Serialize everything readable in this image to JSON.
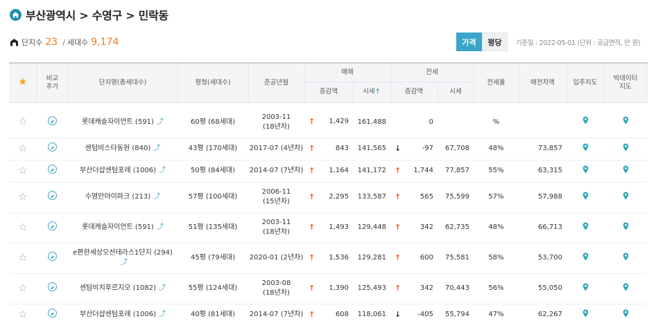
{
  "breadcrumb": {
    "text": "부산광역시 > 수영구 > 민락동"
  },
  "stats": {
    "complex_label": "단지수",
    "complex_count": "23",
    "sep": "/",
    "household_label": "세대수",
    "household_count": "9,174"
  },
  "toggles": {
    "price": "가격",
    "per_pyeong": "평당"
  },
  "basis": "기준일 : 2022-05-01 (단위 : 공급면적, 만 원)",
  "headers": {
    "compare": "비교\n추가",
    "name": "단지명(총세대수)",
    "area": "평형(세대수)",
    "built": "준공년월",
    "sale": "매매",
    "jeonse": "전세",
    "change": "증감액",
    "price": "시세",
    "ratio": "전세율",
    "gap": "매전차액",
    "map": "입주지도",
    "bigdata": "빅데이터\n지도"
  },
  "colors": {
    "accent": "#3aa5c8",
    "up": "#f05a28",
    "orange": "#f07a1e"
  },
  "rows": [
    {
      "name": "롯데캐슬자이언트 (591)",
      "area": "60평 (68세대)",
      "built": "2003-11",
      "age": "(18년차)",
      "sale_dir": "up",
      "sale_change": "1,429",
      "sale_price": "161,488",
      "j_dir": "",
      "j_change": "0",
      "j_price": "",
      "ratio": "%",
      "gap": "",
      "tall": true
    },
    {
      "name": "센텀비스타동원 (840)",
      "area": "43평 (170세대)",
      "built": "2017-07 (4년차)",
      "age": "",
      "sale_dir": "up",
      "sale_change": "843",
      "sale_price": "141,565",
      "j_dir": "down",
      "j_change": "-97",
      "j_price": "67,708",
      "ratio": "48%",
      "gap": "73,857",
      "tall": false
    },
    {
      "name": "부산더샵센텀포레 (1006)",
      "area": "50평 (84세대)",
      "built": "2014-07 (7년차)",
      "age": "",
      "sale_dir": "up",
      "sale_change": "1,164",
      "sale_price": "141,172",
      "j_dir": "up",
      "j_change": "1,744",
      "j_price": "77,857",
      "ratio": "55%",
      "gap": "63,315",
      "tall": false
    },
    {
      "name": "수영만아이파크 (213)",
      "area": "57평 (100세대)",
      "built": "2006-11",
      "age": "(15년차)",
      "sale_dir": "up",
      "sale_change": "2,295",
      "sale_price": "133,587",
      "j_dir": "up",
      "j_change": "565",
      "j_price": "75,599",
      "ratio": "57%",
      "gap": "57,988",
      "tall": true
    },
    {
      "name": "롯데캐슬자이언트 (591)",
      "area": "51평 (135세대)",
      "built": "2003-11",
      "age": "(18년차)",
      "sale_dir": "up",
      "sale_change": "1,493",
      "sale_price": "129,448",
      "j_dir": "up",
      "j_change": "342",
      "j_price": "62,735",
      "ratio": "48%",
      "gap": "66,713",
      "tall": true
    },
    {
      "name": "e편한세상오션테라스1단지 (294)",
      "area": "45평 (79세대)",
      "built": "2020-01 (2년차)",
      "age": "",
      "sale_dir": "up",
      "sale_change": "1,536",
      "sale_price": "129,281",
      "j_dir": "up",
      "j_change": "600",
      "j_price": "75,581",
      "ratio": "58%",
      "gap": "53,700",
      "tall": true,
      "trend_below": true
    },
    {
      "name": "센텀비치푸르지오 (1082)",
      "area": "55평 (124세대)",
      "built": "2003-08",
      "age": "(18년차)",
      "sale_dir": "up",
      "sale_change": "1,390",
      "sale_price": "125,493",
      "j_dir": "up",
      "j_change": "342",
      "j_price": "70,443",
      "ratio": "56%",
      "gap": "55,050",
      "tall": true
    },
    {
      "name": "부산더샵센텀포레 (1006)",
      "area": "40평 (81세대)",
      "built": "2014-07 (7년차)",
      "age": "",
      "sale_dir": "up",
      "sale_change": "608",
      "sale_price": "118,061",
      "j_dir": "down",
      "j_change": "-405",
      "j_price": "55,794",
      "ratio": "47%",
      "gap": "62,267",
      "tall": false
    }
  ]
}
